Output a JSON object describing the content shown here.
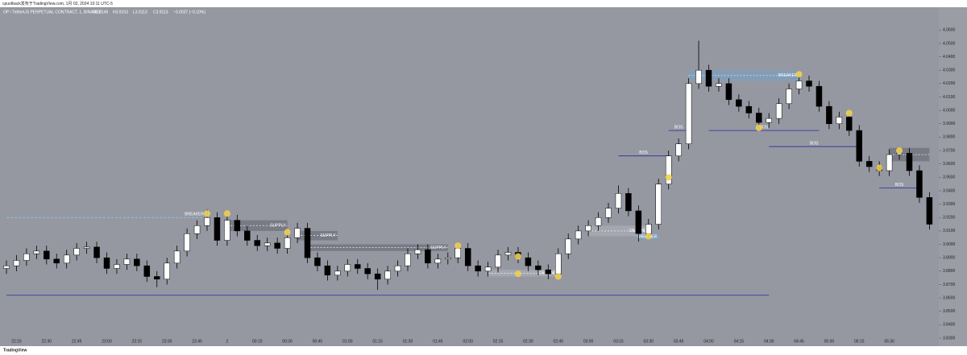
{
  "header": {
    "title": "cpuotback发布于TradingView.com, 1月 02, 2024 10:11 UTC-5",
    "symbol": "OP / TetherUS PERPETUAL CONTRACT, 1, BINANCE",
    "ohlc": [
      "O3.9149",
      "H3.9153",
      "L3.9113",
      "C3.9113"
    ],
    "change": "−0.0037 (−0.10%)"
  },
  "footer": {
    "brand": "TradingView"
  },
  "chart_data": {
    "type": "candlestick",
    "up_color": "#ffffff",
    "down_color": "#000000",
    "background": "#9598a1",
    "marker_color": "#f0d050",
    "categories": [
      null,
      "22:15",
      null,
      null,
      "22:30",
      null,
      null,
      "22:45",
      null,
      null,
      "23:00",
      null,
      null,
      "23:15",
      null,
      null,
      "23:30",
      null,
      null,
      "23:45",
      null,
      null,
      "2",
      null,
      null,
      "00:15",
      null,
      null,
      "00:30",
      null,
      null,
      "00:45",
      null,
      null,
      "01:00",
      null,
      null,
      "01:15",
      null,
      null,
      "01:30",
      null,
      null,
      "01:45",
      null,
      null,
      "02:00",
      null,
      null,
      "02:15",
      null,
      null,
      "02:30",
      null,
      null,
      "02:45",
      null,
      null,
      "03:00",
      null,
      null,
      "03:15",
      null,
      null,
      "03:30",
      null,
      null,
      "03:45",
      null,
      null,
      "04:00",
      null,
      null,
      "04:15",
      null,
      null,
      "04:30",
      null,
      null,
      "04:45",
      null,
      null,
      "05:00",
      null,
      null,
      "05:15",
      null,
      null,
      "05:30",
      null,
      null,
      null,
      null
    ],
    "open": [
      3.882,
      3.884,
      3.888,
      3.893,
      3.895,
      3.889,
      3.886,
      3.892,
      3.897,
      3.898,
      3.89,
      3.882,
      3.885,
      3.889,
      3.884,
      3.876,
      3.874,
      3.886,
      3.895,
      3.908,
      3.914,
      3.92,
      3.903,
      3.918,
      3.91,
      3.903,
      3.899,
      3.901,
      3.897,
      3.905,
      3.912,
      3.89,
      3.884,
      3.877,
      3.88,
      3.885,
      3.882,
      3.878,
      3.874,
      3.88,
      3.884,
      3.893,
      3.896,
      3.886,
      3.889,
      3.89,
      3.897,
      3.884,
      3.88,
      3.883,
      3.892,
      3.894,
      3.89,
      3.884,
      3.881,
      3.878,
      3.893,
      3.904,
      3.91,
      3.914,
      3.92,
      3.927,
      3.938,
      3.925,
      3.908,
      3.915,
      3.945,
      3.966,
      3.975,
      4.02,
      4.03,
      4.018,
      4.02,
      4.008,
      4.003,
      3.998,
      3.991,
      3.994,
      4.005,
      4.016,
      4.022,
      4.018,
      4.003,
      3.99,
      3.995,
      3.985,
      3.962,
      3.958,
      3.955,
      3.967,
      3.968,
      3.955,
      3.935
    ],
    "high": [
      3.888,
      3.892,
      3.897,
      3.899,
      3.899,
      3.893,
      3.896,
      3.901,
      3.902,
      3.902,
      3.894,
      3.889,
      3.893,
      3.893,
      3.888,
      3.88,
      3.89,
      3.899,
      3.912,
      3.918,
      3.926,
      3.924,
      3.924,
      3.922,
      3.914,
      3.907,
      3.905,
      3.905,
      3.909,
      3.916,
      3.916,
      3.894,
      3.888,
      3.884,
      3.889,
      3.889,
      3.886,
      3.882,
      3.884,
      3.888,
      3.897,
      3.9,
      3.9,
      3.893,
      3.894,
      3.901,
      3.901,
      3.888,
      3.887,
      3.896,
      3.898,
      3.898,
      3.894,
      3.888,
      3.885,
      3.897,
      3.908,
      3.914,
      3.918,
      3.924,
      3.931,
      3.944,
      3.942,
      3.929,
      3.919,
      3.949,
      3.97,
      3.979,
      4.024,
      4.052,
      4.034,
      4.024,
      4.024,
      4.012,
      4.007,
      4.002,
      3.998,
      4.009,
      4.02,
      4.026,
      4.026,
      4.022,
      4.007,
      3.999,
      3.999,
      3.989,
      3.966,
      3.962,
      3.971,
      3.972,
      3.972,
      3.959,
      3.939
    ],
    "low": [
      3.878,
      3.88,
      3.884,
      3.889,
      3.885,
      3.882,
      3.882,
      3.888,
      3.893,
      3.886,
      3.878,
      3.878,
      3.881,
      3.88,
      3.872,
      3.868,
      3.87,
      3.882,
      3.891,
      3.904,
      3.91,
      3.899,
      3.899,
      3.906,
      3.899,
      3.895,
      3.895,
      3.893,
      3.893,
      3.901,
      3.886,
      3.88,
      3.873,
      3.873,
      3.876,
      3.878,
      3.874,
      3.866,
      3.87,
      3.876,
      3.88,
      3.889,
      3.882,
      3.882,
      3.885,
      3.886,
      3.88,
      3.876,
      3.876,
      3.879,
      3.888,
      3.886,
      3.88,
      3.877,
      3.874,
      3.874,
      3.889,
      3.9,
      3.906,
      3.91,
      3.916,
      3.923,
      3.921,
      3.902,
      3.904,
      3.911,
      3.941,
      3.962,
      3.971,
      4.016,
      4.014,
      4.014,
      4.004,
      3.999,
      3.994,
      3.985,
      3.987,
      3.99,
      4.001,
      4.012,
      4.014,
      3.999,
      3.986,
      3.986,
      3.981,
      3.958,
      3.954,
      3.951,
      3.951,
      3.963,
      3.951,
      3.931,
      3.911
    ],
    "close": [
      3.884,
      3.888,
      3.893,
      3.895,
      3.889,
      3.886,
      3.892,
      3.897,
      3.898,
      3.89,
      3.882,
      3.885,
      3.889,
      3.884,
      3.876,
      3.874,
      3.886,
      3.895,
      3.908,
      3.914,
      3.92,
      3.903,
      3.918,
      3.91,
      3.903,
      3.899,
      3.901,
      3.897,
      3.905,
      3.912,
      3.89,
      3.884,
      3.877,
      3.88,
      3.885,
      3.882,
      3.878,
      3.874,
      3.88,
      3.884,
      3.893,
      3.896,
      3.886,
      3.889,
      3.89,
      3.897,
      3.884,
      3.88,
      3.883,
      3.892,
      3.894,
      3.89,
      3.884,
      3.881,
      3.878,
      3.893,
      3.904,
      3.91,
      3.914,
      3.92,
      3.927,
      3.938,
      3.925,
      3.908,
      3.915,
      3.945,
      3.966,
      3.975,
      4.02,
      4.03,
      4.018,
      4.02,
      4.008,
      4.003,
      3.998,
      3.991,
      3.994,
      4.005,
      4.016,
      4.022,
      4.018,
      4.003,
      3.99,
      3.995,
      3.985,
      3.962,
      3.958,
      3.955,
      3.967,
      3.968,
      3.955,
      3.935,
      3.915
    ],
    "ylim": [
      3.824,
      4.077
    ],
    "yticks": [
      {
        "value": 3.83,
        "label": "3.8300"
      },
      {
        "value": 3.84,
        "label": "3.8400"
      },
      {
        "value": 3.85,
        "label": "3.8500"
      },
      {
        "value": 3.86,
        "label": "3.8600"
      },
      {
        "value": 3.87,
        "label": "3.8700"
      },
      {
        "value": 3.88,
        "label": "3.8800"
      },
      {
        "value": 3.89,
        "label": "3.8900"
      },
      {
        "value": 3.9,
        "label": "3.9000"
      },
      {
        "value": 3.91,
        "label": "3.9100"
      },
      {
        "value": 3.92,
        "label": "3.9200"
      },
      {
        "value": 3.93,
        "label": "3.9300"
      },
      {
        "value": 3.94,
        "label": "3.9400"
      },
      {
        "value": 3.95,
        "label": "3.9500"
      },
      {
        "value": 3.96,
        "label": "3.9600"
      },
      {
        "value": 3.97,
        "label": "3.9700"
      },
      {
        "value": 3.98,
        "label": "3.9800"
      },
      {
        "value": 3.99,
        "label": "3.9900"
      },
      {
        "value": 4.0,
        "label": "4.0000"
      },
      {
        "value": 4.01,
        "label": "4.0100"
      },
      {
        "value": 4.02,
        "label": "4.0200"
      },
      {
        "value": 4.03,
        "label": "4.0300"
      },
      {
        "value": 4.04,
        "label": "4.0400"
      },
      {
        "value": 4.05,
        "label": "4.0500"
      },
      {
        "value": 4.06,
        "label": "4.0600"
      }
    ],
    "zones": [
      {
        "label": "SUPPLY",
        "from": 22,
        "to": 28,
        "top": 3.918,
        "bottom": 3.91,
        "color": "#6f727c"
      },
      {
        "label": "SUPPLY",
        "from": 29,
        "to": 33,
        "top": 3.91,
        "bottom": 3.903,
        "color": "#6f727c"
      },
      {
        "label": "SUPPLY",
        "from": 30,
        "to": 44,
        "top": 3.9,
        "bottom": 3.895,
        "color": "#6f727c"
      },
      {
        "label": "DEMAND",
        "from": 48,
        "to": 55,
        "top": 3.881,
        "bottom": 3.876,
        "color": "#a9acb4"
      },
      {
        "label": "DEMAND",
        "from": 58,
        "to": 64,
        "top": 3.914,
        "bottom": 3.906,
        "color": "#a9acb4"
      },
      {
        "label": "BREAKER",
        "from": 68,
        "to": 79,
        "top": 4.03,
        "bottom": 4.022,
        "color": "#7f9fbf"
      },
      {
        "label": "BREAKER",
        "from": 63,
        "to": 65,
        "top": 3.908,
        "bottom": 3.903,
        "color": "#7f9fbf"
      },
      {
        "from": 88,
        "to": 92,
        "top": 3.972,
        "bottom": 3.962,
        "color": "#6f727c"
      }
    ],
    "lines": [
      {
        "label": "BREAKER",
        "from": 0,
        "to": 20,
        "price": 3.92,
        "color": "#7fd4ff",
        "dashed": true
      },
      {
        "from": 0,
        "to": 76,
        "price": 3.862,
        "color": "#2a2aa0"
      },
      {
        "label": "BOS",
        "from": 61,
        "to": 66,
        "price": 3.966,
        "color": "#2a2aa0"
      },
      {
        "label": "BOS",
        "from": 66,
        "to": 68,
        "price": 3.985,
        "color": "#2a2aa0"
      },
      {
        "label": "BOS",
        "from": 70,
        "to": 81,
        "price": 3.985,
        "color": "#2a2aa0"
      },
      {
        "label": "BOS",
        "from": 76,
        "to": 85,
        "price": 3.973,
        "color": "#2a2aa0"
      },
      {
        "label": "BOS",
        "from": 87,
        "to": 91,
        "price": 3.942,
        "color": "#2a2aa0"
      }
    ],
    "markers": [
      {
        "index": 20,
        "price": 3.923
      },
      {
        "index": 22,
        "price": 3.923
      },
      {
        "index": 28,
        "price": 3.909
      },
      {
        "index": 45,
        "price": 3.899
      },
      {
        "index": 51,
        "price": 3.891
      },
      {
        "index": 51,
        "price": 3.878
      },
      {
        "index": 55,
        "price": 3.876
      },
      {
        "index": 64,
        "price": 3.906
      },
      {
        "index": 66,
        "price": 3.95
      },
      {
        "index": 75,
        "price": 3.987
      },
      {
        "index": 79,
        "price": 4.027
      },
      {
        "index": 84,
        "price": 3.998
      },
      {
        "index": 87,
        "price": 3.957
      },
      {
        "index": 89,
        "price": 3.97
      }
    ]
  }
}
